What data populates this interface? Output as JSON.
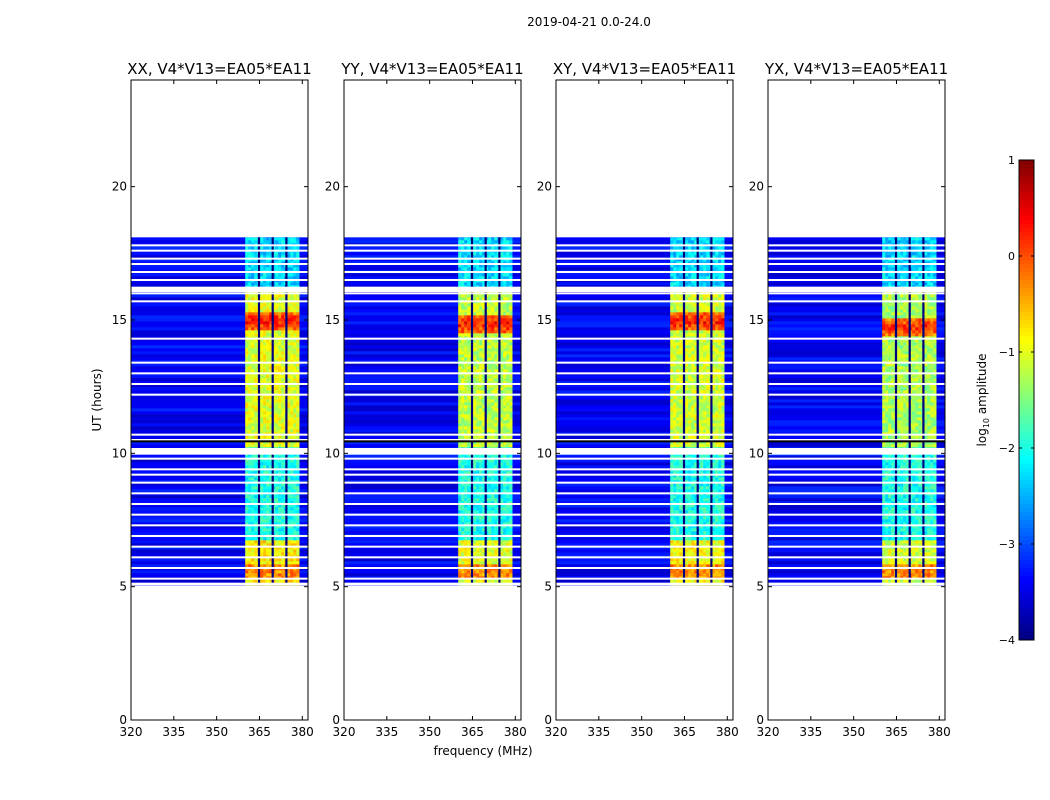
{
  "figure": {
    "suptitle": "2019-04-21 0.0-24.0",
    "xlabel": "frequency (MHz)",
    "ylabel": "UT (hours)",
    "colorbar_label_prefix": "log",
    "colorbar_label_sub": "10",
    "colorbar_label_suffix": " amplitude"
  },
  "chart_data": {
    "type": "heatmap",
    "title": "2019-04-21 0.0-24.0",
    "xlabel": "frequency (MHz)",
    "ylabel": "UT (hours)",
    "xlim": [
      320,
      382
    ],
    "ylim": [
      0,
      24
    ],
    "xticks": [
      320,
      335,
      350,
      365,
      380
    ],
    "xtick_labels": [
      "320",
      "335",
      "350",
      "365",
      "380"
    ],
    "yticks": [
      0,
      5,
      10,
      15,
      20
    ],
    "ytick_labels": [
      "0",
      "5",
      "10",
      "15",
      "20"
    ],
    "colorbar": {
      "label": "log10 amplitude",
      "min": -4,
      "max": 1,
      "ticks": [
        1,
        0,
        -1,
        -2,
        -3,
        -4
      ],
      "tick_labels": [
        "1",
        "0",
        "−1",
        "−2",
        "−3",
        "−4"
      ],
      "colormap": "jet"
    },
    "data_extent": {
      "time_start": 5.1,
      "time_end": 18.1,
      "band_freq_start": 360,
      "band_freq_end": 378,
      "channel_gap_freqs": [
        364.8,
        369.6,
        374.4
      ]
    },
    "flagged_time_rows": [
      5.3,
      5.7,
      6.1,
      6.5,
      6.9,
      7.3,
      7.7,
      8.1,
      8.5,
      8.9,
      9.2,
      9.4,
      9.8,
      10.1,
      10.5,
      10.7,
      12.2,
      12.6,
      13.0,
      13.4,
      14.3,
      15.7,
      16.0,
      16.2,
      16.5,
      16.8,
      17.1,
      17.3,
      17.6,
      17.8
    ],
    "panels": [
      {
        "title": "XX, V4*V13=EA05*EA11",
        "polarization": "XX",
        "band_level_log10": -1.0,
        "peak_level_log10": 0.3,
        "peak_time": 15.0,
        "background_level_log10": -3.4
      },
      {
        "title": "YY, V4*V13=EA05*EA11",
        "polarization": "YY",
        "band_level_log10": -1.2,
        "peak_level_log10": 0.3,
        "peak_time": 14.9,
        "background_level_log10": -3.4
      },
      {
        "title": "XY, V4*V13=EA05*EA11",
        "polarization": "XY",
        "band_level_log10": -1.1,
        "peak_level_log10": 0.3,
        "peak_time": 15.0,
        "background_level_log10": -3.4
      },
      {
        "title": "YX, V4*V13=EA05*EA11",
        "polarization": "YX",
        "band_level_log10": -1.3,
        "peak_level_log10": 0.2,
        "peak_time": 14.8,
        "background_level_log10": -3.4
      }
    ]
  }
}
